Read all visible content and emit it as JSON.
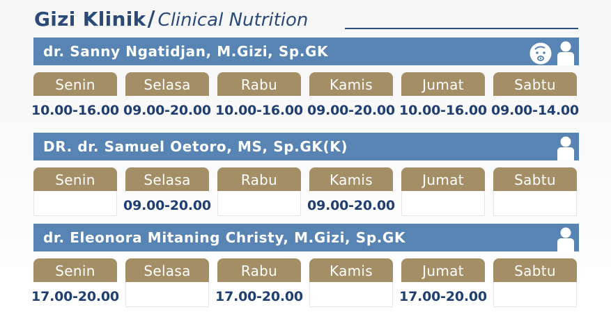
{
  "header": {
    "title_bold": "Gizi Klinik",
    "title_slash": "/",
    "title_italic": "Clinical Nutrition"
  },
  "days": [
    "Senin",
    "Selasa",
    "Rabu",
    "Kamis",
    "Jumat",
    "Sabtu"
  ],
  "doctors": [
    {
      "name": "dr. Sanny Ngatidjan, M.Gizi, Sp.GK",
      "icons": [
        "baby-icon",
        "person-icon"
      ],
      "times": [
        "10.00-16.00",
        "09.00-20.00",
        "10.00-16.00",
        "09.00-20.00",
        "10.00-16.00",
        "09.00-14.00"
      ]
    },
    {
      "name": "DR. dr. Samuel Oetoro, MS, Sp.GK(K)",
      "icons": [
        "person-icon"
      ],
      "times": [
        "",
        "09.00-20.00",
        "",
        "09.00-20.00",
        "",
        ""
      ]
    },
    {
      "name": "dr. Eleonora Mitaning Christy, M.Gizi, Sp.GK",
      "icons": [
        "person-icon"
      ],
      "times": [
        "17.00-20.00",
        "",
        "17.00-20.00",
        "",
        "17.00-20.00",
        ""
      ]
    }
  ],
  "colors": {
    "navy": "#2a4a78",
    "bar_blue": "#5884b3",
    "day_gold": "#a48e66"
  }
}
